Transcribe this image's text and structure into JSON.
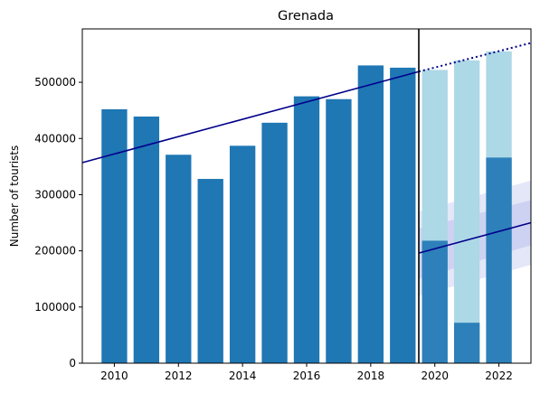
{
  "chart_data": {
    "type": "bar",
    "title": "Grenada",
    "xlabel": "",
    "ylabel": "Number of tourists",
    "xlim": [
      2009.0,
      2023.0
    ],
    "ylim": [
      0,
      595000
    ],
    "xticks": [
      2010,
      2012,
      2014,
      2016,
      2018,
      2020,
      2022
    ],
    "yticks": [
      0,
      100000,
      200000,
      300000,
      400000,
      500000
    ],
    "grid": false,
    "legend": "none",
    "series": [
      {
        "kind": "bar",
        "color": "#1f77b4",
        "x": [
          2010,
          2011,
          2012,
          2013,
          2014,
          2015,
          2016,
          2017,
          2018,
          2019
        ],
        "values": [
          452000,
          439000,
          371000,
          328000,
          387000,
          428000,
          475000,
          470000,
          530000,
          526000
        ]
      },
      {
        "kind": "bar",
        "color": "#add8e6",
        "x": [
          2020,
          2021,
          2022
        ],
        "values": [
          522000,
          539000,
          555000
        ]
      },
      {
        "kind": "bar",
        "color": "#1f77b4",
        "alpha": 0.9,
        "x": [
          2020,
          2021,
          2022
        ],
        "values": [
          218000,
          72000,
          366000
        ]
      },
      {
        "kind": "line",
        "color": "#00008b",
        "style": "solid",
        "x": [
          2009.0,
          2019.5
        ],
        "y": [
          357000,
          519000
        ]
      },
      {
        "kind": "line",
        "color": "#00008b",
        "style": "dotted",
        "x": [
          2019.5,
          2023.0
        ],
        "y": [
          519000,
          570000
        ]
      },
      {
        "kind": "line",
        "color": "#00008b",
        "style": "solid",
        "x": [
          2019.5,
          2023.0
        ],
        "y": [
          196000,
          250000
        ]
      },
      {
        "kind": "band",
        "color": "#4a5fd0",
        "alpha": 0.15,
        "x": [
          2019.5,
          2023.0
        ],
        "lower": [
          120000,
          175000
        ],
        "upper": [
          270000,
          325000
        ]
      },
      {
        "kind": "band",
        "color": "#4a5fd0",
        "alpha": 0.15,
        "x": [
          2019.5,
          2023.0
        ],
        "lower": [
          150000,
          210000
        ],
        "upper": [
          240000,
          290000
        ]
      }
    ],
    "annotations": [
      {
        "kind": "vline",
        "x": 2019.5,
        "color": "#000000"
      }
    ]
  }
}
